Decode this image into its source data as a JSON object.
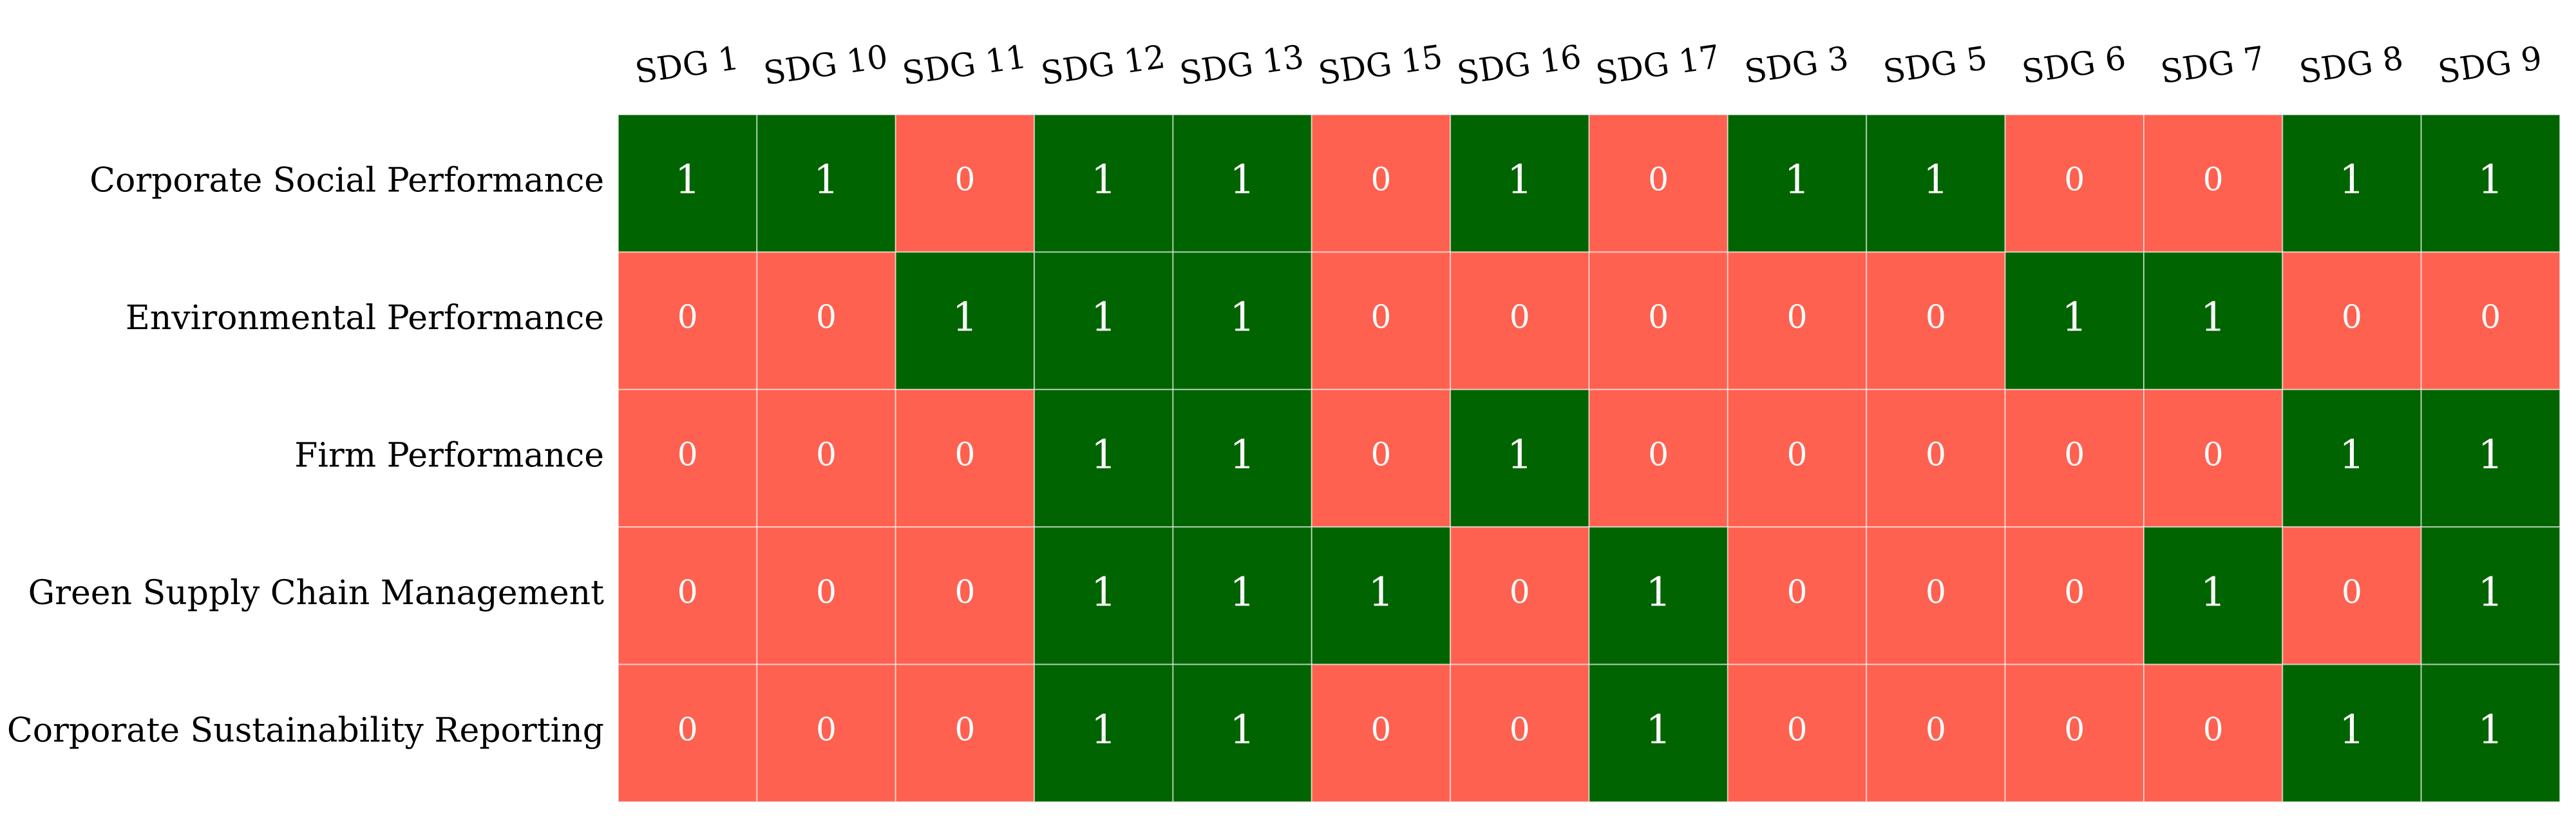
{
  "chart_data": {
    "type": "heatmap",
    "columns": [
      "SDG 1",
      "SDG 10",
      "SDG 11",
      "SDG 12",
      "SDG 13",
      "SDG 15",
      "SDG 16",
      "SDG 17",
      "SDG 3",
      "SDG 5",
      "SDG 6",
      "SDG 7",
      "SDG 8",
      "SDG 9"
    ],
    "rows": [
      {
        "label": "Corporate Social Performance",
        "values": [
          1,
          1,
          0,
          1,
          1,
          0,
          1,
          0,
          1,
          1,
          0,
          0,
          1,
          1
        ]
      },
      {
        "label": "Environmental Performance",
        "values": [
          0,
          0,
          1,
          1,
          1,
          0,
          0,
          0,
          0,
          0,
          1,
          1,
          0,
          0
        ]
      },
      {
        "label": "Firm Performance",
        "values": [
          0,
          0,
          0,
          1,
          1,
          0,
          1,
          0,
          0,
          0,
          0,
          0,
          1,
          1
        ]
      },
      {
        "label": "Green Supply Chain Management",
        "values": [
          0,
          0,
          0,
          1,
          1,
          1,
          0,
          1,
          0,
          0,
          0,
          1,
          0,
          1
        ]
      },
      {
        "label": "Corporate Sustainability Reporting",
        "values": [
          0,
          0,
          0,
          1,
          1,
          0,
          0,
          1,
          0,
          0,
          0,
          0,
          1,
          1
        ]
      }
    ],
    "colors": {
      "1": "#006400",
      "0": "#ff6150"
    },
    "grid": false,
    "legend": "none"
  }
}
